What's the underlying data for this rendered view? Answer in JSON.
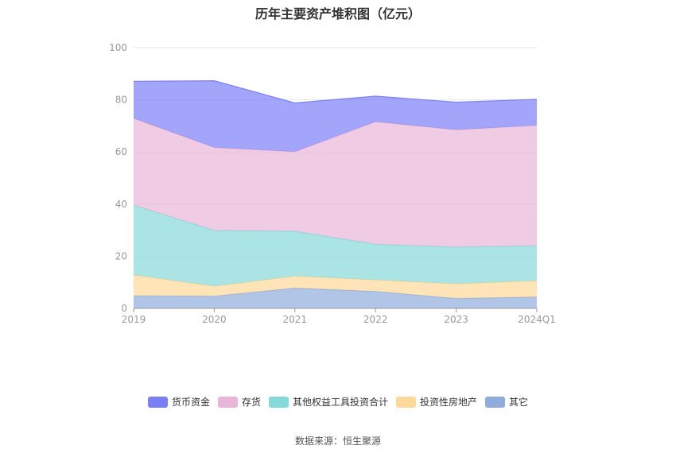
{
  "chart_data": {
    "type": "area",
    "stacked": true,
    "title": "历年主要资产堆积图（亿元）",
    "categories": [
      "2019",
      "2020",
      "2021",
      "2022",
      "2023",
      "2024Q1"
    ],
    "ylim": [
      0,
      100
    ],
    "yticks": [
      "0",
      "20",
      "40",
      "60",
      "80",
      "100"
    ],
    "grid": true,
    "legend_position": "bottom",
    "series": [
      {
        "name": "其它",
        "color": "#90acdb",
        "values": [
          4.8,
          4.7,
          7.8,
          6.5,
          3.8,
          4.4
        ]
      },
      {
        "name": "投资性房地产",
        "color": "#ffd99a",
        "values": [
          8.0,
          3.8,
          4.6,
          4.4,
          5.6,
          6.2
        ]
      },
      {
        "name": "其他权益工具投资合计",
        "color": "#86d9d9",
        "values": [
          26.8,
          21.4,
          17.2,
          13.7,
          14.1,
          13.4
        ]
      },
      {
        "name": "存货",
        "color": "#e8b7d8",
        "values": [
          33.3,
          31.8,
          30.5,
          47.0,
          45.0,
          46.2
        ]
      },
      {
        "name": "货币资金",
        "color": "#7b7ff6",
        "values": [
          14.2,
          25.6,
          18.7,
          9.8,
          10.6,
          10.0
        ]
      }
    ],
    "legend_order": [
      "货币资金",
      "存货",
      "其他权益工具投资合计",
      "投资性房地产",
      "其它"
    ]
  },
  "source_note": "数据来源：恒生聚源"
}
